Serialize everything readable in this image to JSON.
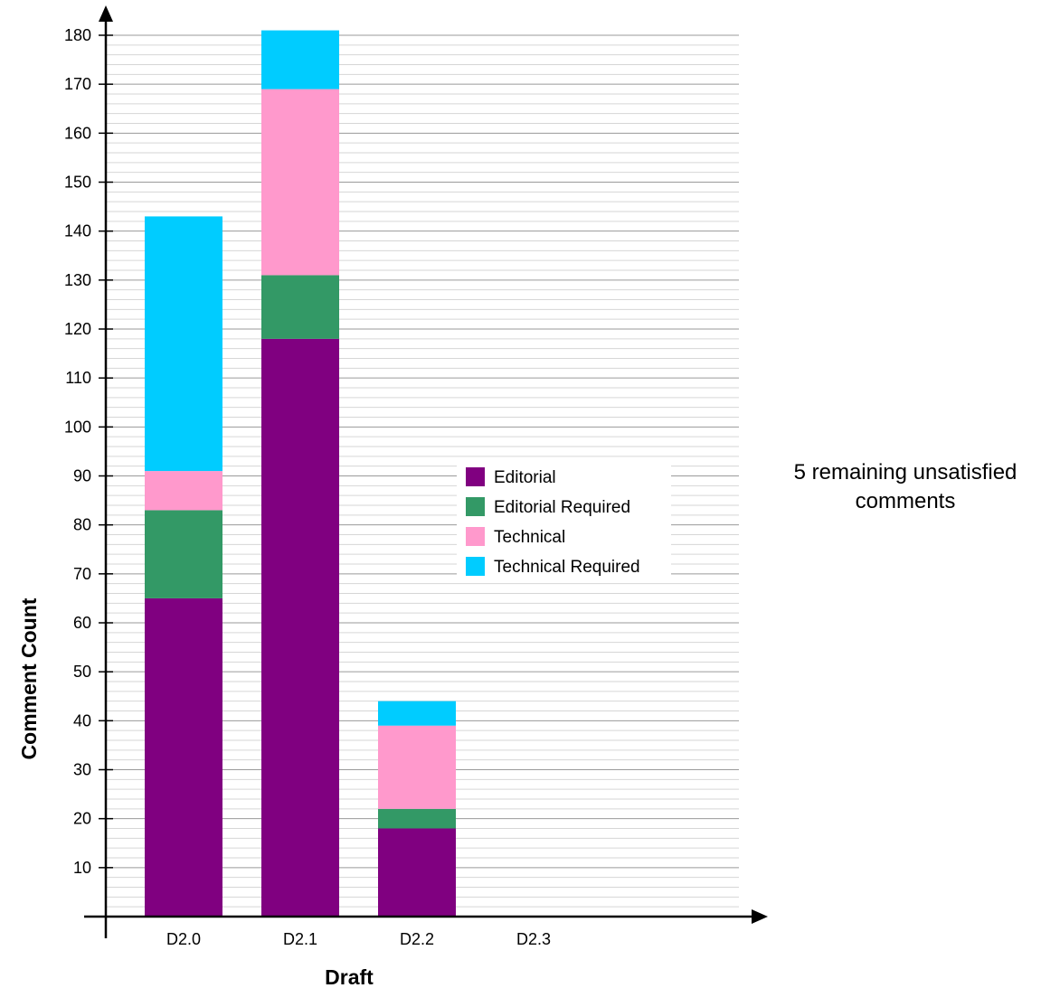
{
  "chart_data": {
    "type": "bar",
    "stacked": true,
    "categories": [
      "D2.0",
      "D2.1",
      "D2.2",
      "D2.3"
    ],
    "series": [
      {
        "name": "Editorial",
        "color": "#800080",
        "values": [
          65,
          118,
          18,
          0
        ]
      },
      {
        "name": "Editorial Required",
        "color": "#339966",
        "values": [
          18,
          13,
          4,
          0
        ]
      },
      {
        "name": "Technical",
        "color": "#ff99cc",
        "values": [
          8,
          38,
          17,
          0
        ]
      },
      {
        "name": "Technical Required",
        "color": "#00ccff",
        "values": [
          52,
          12,
          5,
          0
        ]
      }
    ],
    "xlabel": "Draft",
    "ylabel": "Comment Count",
    "ylim": [
      0,
      180
    ],
    "yticks": [
      10,
      20,
      30,
      40,
      50,
      60,
      70,
      80,
      90,
      100,
      110,
      120,
      130,
      140,
      150,
      160,
      170,
      180
    ],
    "grid": true,
    "legend_position": "center-right",
    "annotation": "5 remaining unsatisfied comments"
  }
}
